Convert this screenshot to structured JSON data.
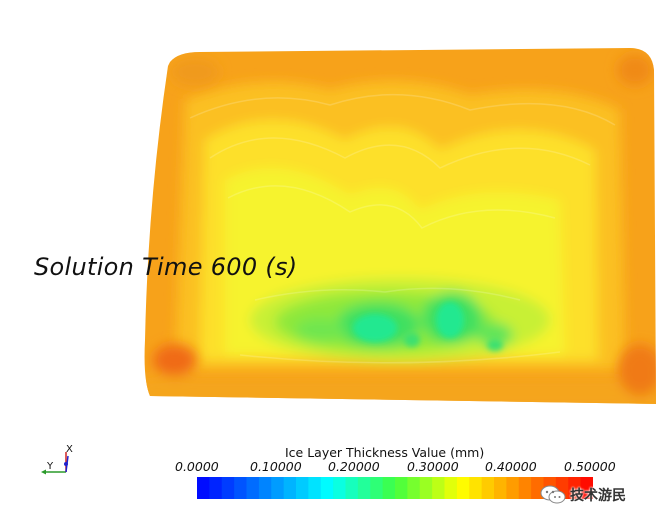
{
  "viewport": {
    "solution_time_label": "Solution Time 600 (s)",
    "scalar_field": "Ice Layer Thickness Value"
  },
  "legend": {
    "title": "Ice Layer Thickness Value (mm)",
    "ticks": [
      "0.0000",
      "0.10000",
      "0.20000",
      "0.30000",
      "0.40000",
      "0.50000"
    ],
    "range": [
      0.0,
      0.5
    ],
    "colors": [
      "#0000ff",
      "#0080ff",
      "#00ffff",
      "#40ff40",
      "#ffff00",
      "#ff8000",
      "#ff0000"
    ]
  },
  "axes": {
    "x_label": "X",
    "y_label": "Y"
  },
  "watermark": {
    "text": "技术游民",
    "icon": "wechat-icon"
  }
}
